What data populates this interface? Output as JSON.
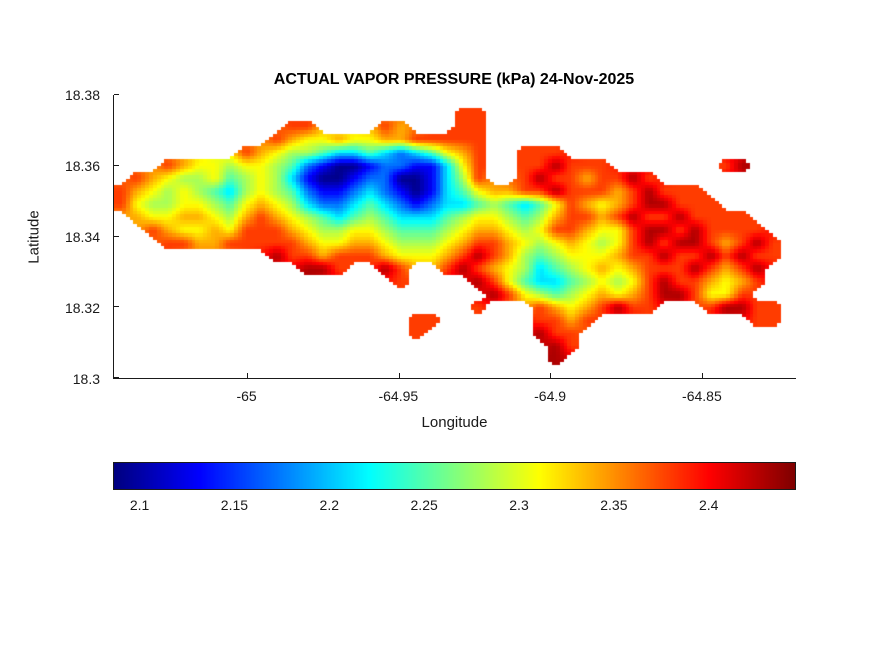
{
  "figure": {
    "background": "#ffffff",
    "text_color": "#1a1a1a"
  },
  "chart_data": {
    "type": "heatmap",
    "title": "ACTUAL VAPOR PRESSURE (kPa) 24-Nov-2025",
    "variable": "Actual vapor pressure",
    "units": "kPa",
    "date": "24-Nov-2025",
    "xlabel": "Longitude",
    "ylabel": "Latitude",
    "xlim": [
      -65.044,
      -64.819
    ],
    "ylim": [
      18.3,
      18.38
    ],
    "x_ticks": [
      {
        "label": "-65",
        "value": -65
      },
      {
        "label": "-64.95",
        "value": -64.95
      },
      {
        "label": "-64.9",
        "value": -64.9
      },
      {
        "label": "-64.85",
        "value": -64.85
      }
    ],
    "y_ticks": [
      {
        "label": "18.38",
        "value": 18.38
      },
      {
        "label": "18.36",
        "value": 18.36
      },
      {
        "label": "18.34",
        "value": 18.34
      },
      {
        "label": "18.32",
        "value": 18.32
      },
      {
        "label": "18.3",
        "value": 18.3
      }
    ],
    "colormap": "jet",
    "colorbar": {
      "orientation": "horizontal",
      "min": 2.086,
      "max": 2.446,
      "ticks": [
        {
          "label": "2.1",
          "value": 2.1
        },
        {
          "label": "2.15",
          "value": 2.15
        },
        {
          "label": "2.2",
          "value": 2.2
        },
        {
          "label": "2.25",
          "value": 2.25
        },
        {
          "label": "2.3",
          "value": 2.3
        },
        {
          "label": "2.35",
          "value": 2.35
        },
        {
          "label": "2.4",
          "value": 2.4
        }
      ]
    },
    "grid": {
      "cols": 44,
      "rows": 22,
      "lon_min": -65.044,
      "lon_max": -64.819,
      "lat_min": 18.3,
      "lat_max": 18.38,
      "ocean_char": ".",
      "value_map": {
        "a": 2.09,
        "b": 2.13,
        "c": 2.17,
        "d": 2.21,
        "e": 2.25,
        "f": 2.28,
        "g": 2.31,
        "h": 2.34,
        "i": 2.38,
        "j": 2.43
      },
      "rows_data": [
        "............................................",
        "......................ii....................",
        "...........ii....ih...ii....................",
        "..........ihgghgghhiiiii....................",
        "........ihgffeddedcdeghi..iii...............",
        "...ihggfggfecbaabccbbdgi..iijiii.......ij...",
        ".ihgffgefgfdbaabccaabdfi..ijiihiiji.........",
        "ihgfgfedfgfecbbcdcbabdeghhiijiiihijiii......",
        "igffggfeghgfdccdedcbcddefedegihghijjiii.....",
        ".hgghhgfhihgfedefedddefggfefhiihijiijiiii...",
        "..ihgghgiiihgffggfeeefghhgfgiihggijjijiiii..",
        "...iihhiiiiihgghhgfffghiihgfghgfgijijjihiji.",
        "..........jiihiiihggghijihfefggghiijiijijii.",
        "............jji..ji..ijihgfdefghghiiijihij..",
        "..................i....jigeddefgfgijiihghi..",
        "........................jigfefghghijjiggi...",
        ".......................i...ihghijii...ijjii.",
        "...................ii......iihi..........ii.",
        "...................i.......jii..............",
        "............................ji..............",
        "............................j...............",
        "............................................"
      ]
    }
  }
}
